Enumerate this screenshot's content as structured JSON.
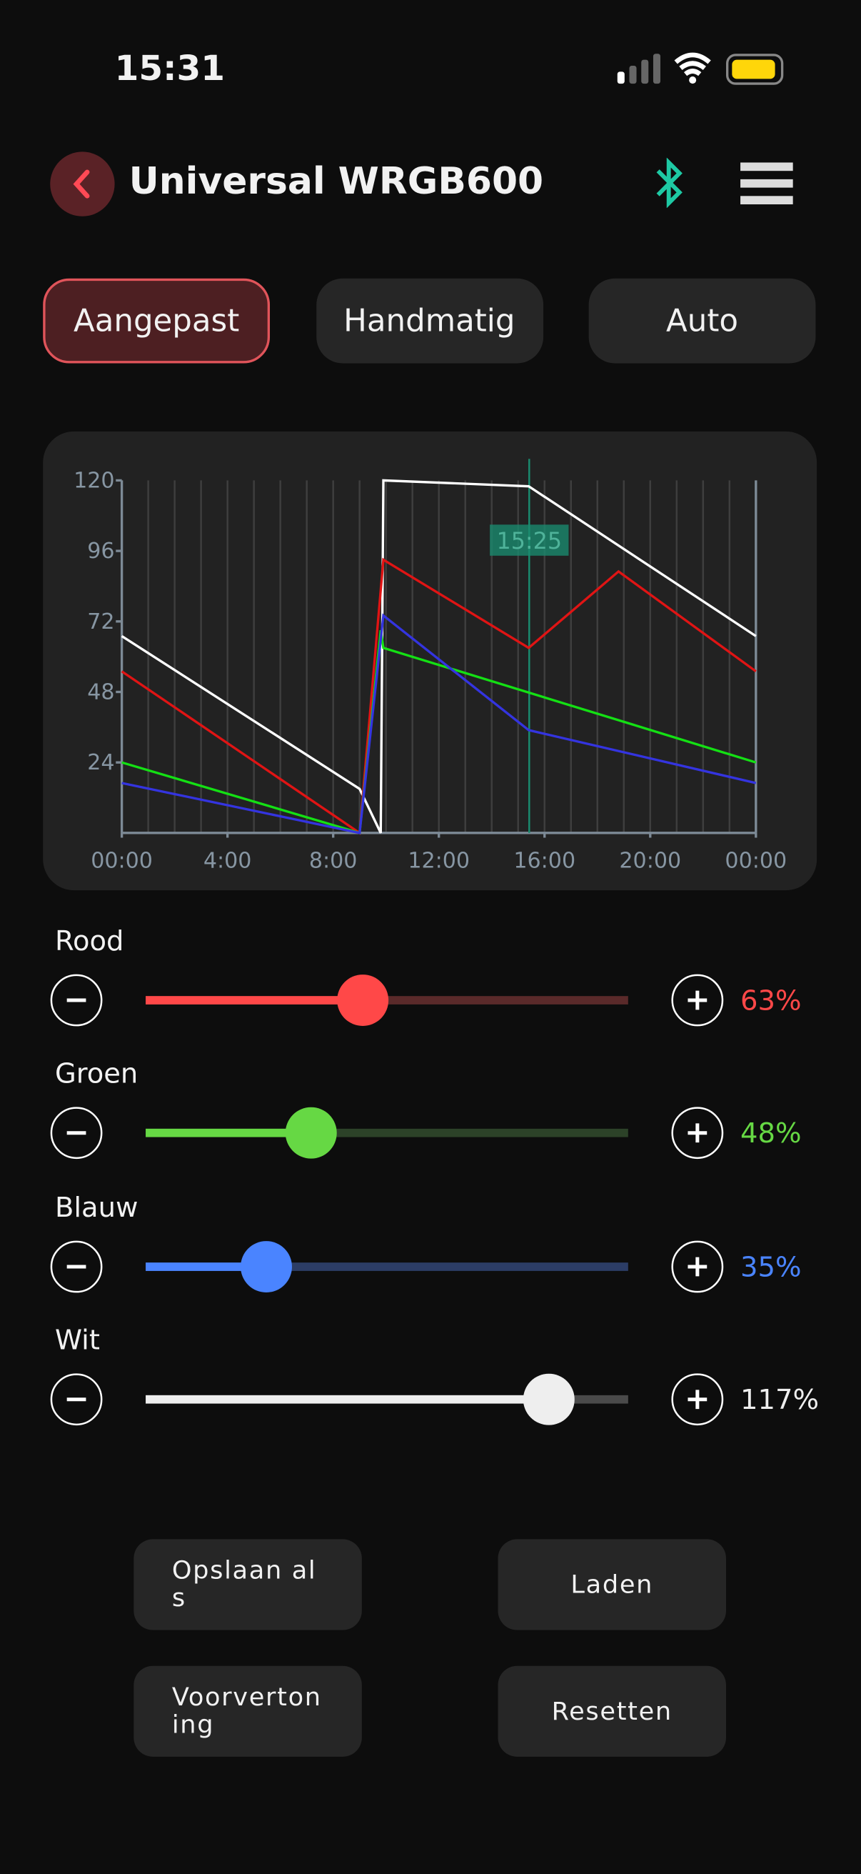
{
  "status_bar": {
    "time": "15:31"
  },
  "header": {
    "title": "Universal WRGB600"
  },
  "tabs": [
    {
      "label": "Aangepast",
      "active": true
    },
    {
      "label": "Handmatig",
      "active": false
    },
    {
      "label": "Auto",
      "active": false
    }
  ],
  "chart_data": {
    "type": "line",
    "xlim": [
      0,
      24
    ],
    "ylim": [
      0,
      120
    ],
    "xticks": [
      {
        "value": 0,
        "label": "00:00"
      },
      {
        "value": 4,
        "label": "4:00"
      },
      {
        "value": 8,
        "label": "8:00"
      },
      {
        "value": 12,
        "label": "12:00"
      },
      {
        "value": 16,
        "label": "16:00"
      },
      {
        "value": 20,
        "label": "20:00"
      },
      {
        "value": 24,
        "label": "00:00"
      }
    ],
    "yticks": [
      24,
      48,
      72,
      96,
      120
    ],
    "grid": true,
    "marker": {
      "value": 15.42,
      "label": "15:25",
      "color": "#1a8a6e"
    },
    "series": [
      {
        "color": "#ffffff",
        "x": [
          0,
          9,
          9.8,
          9.9,
          15.4,
          24
        ],
        "values": [
          67,
          15,
          0,
          120,
          118,
          67
        ]
      },
      {
        "color": "#e01414",
        "x": [
          0,
          9,
          9.9,
          15.4,
          18.8,
          24
        ],
        "values": [
          55,
          0,
          93,
          63,
          89,
          55
        ]
      },
      {
        "color": "#14e014",
        "x": [
          0,
          9,
          9.8,
          9.9,
          24
        ],
        "values": [
          24,
          0,
          69,
          63,
          24
        ]
      },
      {
        "color": "#3434e0",
        "x": [
          0,
          9,
          9.9,
          15.4,
          24
        ],
        "values": [
          17,
          0,
          74,
          35,
          17
        ]
      }
    ]
  },
  "sliders": {
    "range": [
      0,
      140
    ],
    "items": [
      {
        "label": "Rood",
        "value": 63,
        "value_label": "63%",
        "color": "#ff4848",
        "track": "#5a2a2a"
      },
      {
        "label": "Groen",
        "value": 48,
        "value_label": "48%",
        "color": "#66d844",
        "track": "#2c4228"
      },
      {
        "label": "Blauw",
        "value": 35,
        "value_label": "35%",
        "color": "#4a84ff",
        "track": "#2c3d66"
      },
      {
        "label": "Wit",
        "value": 117,
        "value_label": "117%",
        "color": "#eeeeee",
        "track": "#4a4a4a"
      }
    ]
  },
  "buttons": [
    "Opslaan als",
    "Laden",
    "Voorvertoning",
    "Resetten"
  ]
}
